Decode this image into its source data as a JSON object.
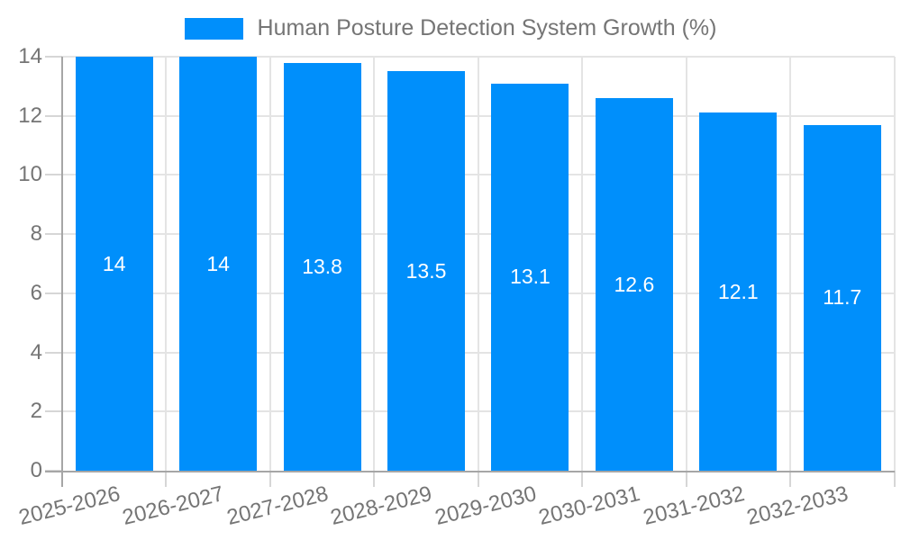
{
  "legend": {
    "items": [
      {
        "label": "Human Posture Detection System Growth (%)",
        "color": "#008FFB"
      }
    ]
  },
  "chart_data": {
    "type": "bar",
    "title": "Human Posture Detection System Growth (%)",
    "categories": [
      "2025-2026",
      "2026-2027",
      "2027-2028",
      "2028-2029",
      "2029-2030",
      "2030-2031",
      "2031-2032",
      "2032-2033"
    ],
    "series": [
      {
        "name": "Human Posture Detection System Growth (%)",
        "values": [
          14,
          14,
          13.8,
          13.5,
          13.1,
          12.6,
          12.1,
          11.7
        ]
      }
    ],
    "value_labels": [
      "14",
      "14",
      "13.8",
      "13.5",
      "13.1",
      "12.6",
      "12.1",
      "11.7"
    ],
    "xlabel": "",
    "ylabel": "",
    "ylim": [
      0,
      14
    ],
    "yticks": [
      0,
      2,
      4,
      6,
      8,
      10,
      12,
      14
    ],
    "grid": true,
    "legend_position": "top-center",
    "colors": {
      "bar": "#008FFB",
      "value_label": "#ffffff",
      "axis_text": "#757575",
      "gridline": "#e4e4e4",
      "tick": "#d6d6d6",
      "axis_line": "#a6a6a6",
      "background": "#ffffff"
    }
  }
}
